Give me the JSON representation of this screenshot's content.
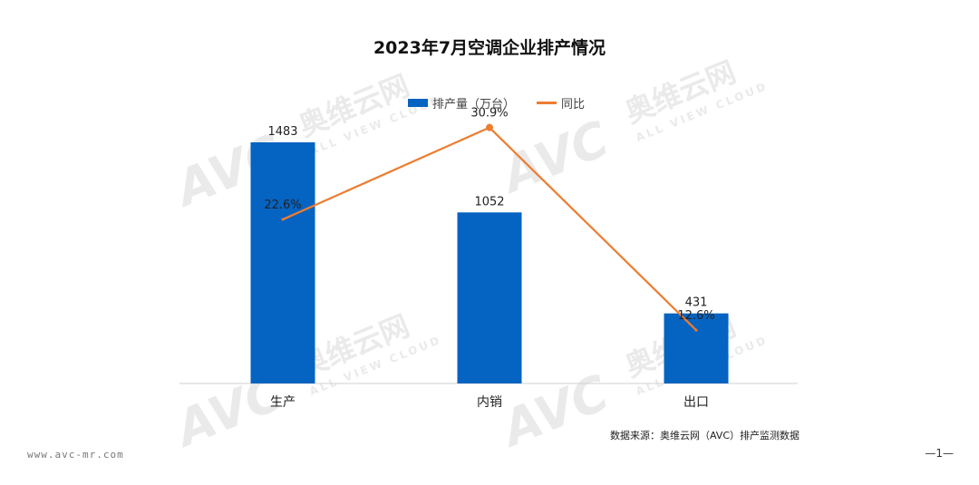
{
  "chart_data": {
    "type": "bar",
    "title": "2023年7月空调企业排产情况",
    "categories": [
      "生产",
      "内销",
      "出口"
    ],
    "series": [
      {
        "name": "排产量（万台）",
        "kind": "bar",
        "values": [
          1483,
          1052,
          431
        ],
        "labels": [
          "1483",
          "1052",
          "431"
        ],
        "color": "#0563C1"
      },
      {
        "name": "同比",
        "kind": "line",
        "values": [
          22.6,
          30.9,
          12.6
        ],
        "labels": [
          "22.6%",
          "30.9%",
          "12.6%"
        ],
        "color": "#ED7D31"
      }
    ],
    "grid": false,
    "legend_position": "top"
  },
  "watermark": {
    "brand": "AVC",
    "cn": "奥维云网",
    "en": "ALL VIEW CLOUD"
  },
  "source": "数据来源：奥维云网（AVC）排产监测数据",
  "footer_url": "www.avc-mr.com",
  "page_number": "—1—"
}
